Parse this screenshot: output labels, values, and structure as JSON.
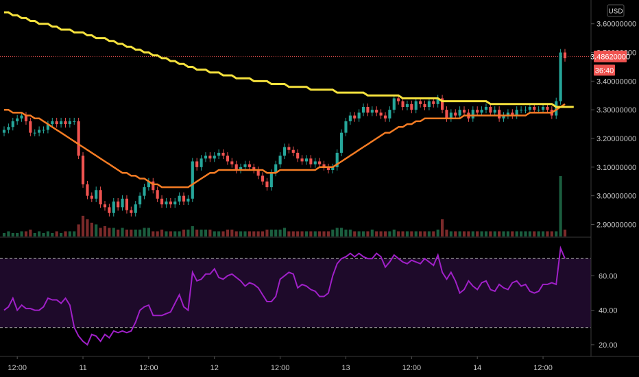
{
  "chart_data": {
    "type": "candlestick",
    "currency_label": "USD",
    "price_axis": {
      "range": [
        2.87,
        3.64
      ],
      "ticks": [
        {
          "value": 3.6,
          "label": "3.60000000"
        },
        {
          "value": 3.5,
          "label": "3.50000000"
        },
        {
          "value": 3.4,
          "label": "3.40000000"
        },
        {
          "value": 3.3,
          "label": "3.30000000"
        },
        {
          "value": 3.2,
          "label": "3.20000000"
        },
        {
          "value": 3.1,
          "label": "3.10000000"
        },
        {
          "value": 3.0,
          "label": "3.00000000"
        },
        {
          "value": 2.9,
          "label": "2.90000000"
        }
      ]
    },
    "current_price": {
      "value": 3.4862,
      "label": "3.48620000",
      "countdown": "36:40",
      "color": "#ef5350"
    },
    "rsi_axis": {
      "range": [
        14,
        80
      ],
      "ticks": [
        {
          "value": 60,
          "label": "60.00"
        },
        {
          "value": 40,
          "label": "40.00"
        },
        {
          "value": 20,
          "label": "20.00"
        }
      ],
      "upper_band": 70,
      "lower_band": 30
    },
    "time_axis": [
      {
        "index": 3,
        "label": "12:00"
      },
      {
        "index": 18,
        "label": "11"
      },
      {
        "index": 33,
        "label": "12:00"
      },
      {
        "index": 48,
        "label": "12"
      },
      {
        "index": 63,
        "label": "12:00"
      },
      {
        "index": 78,
        "label": "13"
      },
      {
        "index": 93,
        "label": "12:00"
      },
      {
        "index": 108,
        "label": "14"
      },
      {
        "index": 123,
        "label": "12:00"
      }
    ],
    "colors": {
      "up": "#26a69a",
      "down": "#ef5350",
      "vol_up": "#1b5e3f",
      "vol_down": "#7b2a2a",
      "ma_long": "#f5e13d",
      "ma_short": "#f57c24",
      "rsi": "#a020c8",
      "rsi_band_fill": "#1e0a2a"
    },
    "candle_closes": [
      3.23,
      3.24,
      3.26,
      3.27,
      3.28,
      3.26,
      3.22,
      3.22,
      3.23,
      3.23,
      3.25,
      3.26,
      3.25,
      3.26,
      3.25,
      3.26,
      3.26,
      3.14,
      3.04,
      3.0,
      2.99,
      3.02,
      2.97,
      2.96,
      2.94,
      2.98,
      2.96,
      2.99,
      2.95,
      2.94,
      2.97,
      3.0,
      3.03,
      3.05,
      3.02,
      2.99,
      2.97,
      2.98,
      2.97,
      2.98,
      3.0,
      2.98,
      2.99,
      3.12,
      3.1,
      3.13,
      3.14,
      3.13,
      3.14,
      3.15,
      3.14,
      3.12,
      3.11,
      3.09,
      3.1,
      3.11,
      3.1,
      3.09,
      3.07,
      3.05,
      3.03,
      3.08,
      3.11,
      3.14,
      3.17,
      3.16,
      3.15,
      3.13,
      3.12,
      3.13,
      3.11,
      3.12,
      3.11,
      3.1,
      3.09,
      3.1,
      3.15,
      3.22,
      3.26,
      3.28,
      3.27,
      3.29,
      3.31,
      3.29,
      3.3,
      3.29,
      3.28,
      3.27,
      3.3,
      3.34,
      3.33,
      3.31,
      3.32,
      3.3,
      3.33,
      3.32,
      3.31,
      3.33,
      3.32,
      3.34,
      3.3,
      3.27,
      3.29,
      3.28,
      3.3,
      3.29,
      3.27,
      3.3,
      3.29,
      3.3,
      3.31,
      3.29,
      3.3,
      3.27,
      3.28,
      3.29,
      3.28,
      3.3,
      3.3,
      3.3,
      3.31,
      3.3,
      3.3,
      3.31,
      3.3,
      3.28,
      3.33,
      3.5,
      3.48
    ],
    "ma_long": [
      3.64,
      3.64,
      3.63,
      3.63,
      3.62,
      3.62,
      3.61,
      3.61,
      3.6,
      3.6,
      3.6,
      3.59,
      3.59,
      3.58,
      3.58,
      3.58,
      3.57,
      3.57,
      3.57,
      3.56,
      3.56,
      3.55,
      3.55,
      3.55,
      3.54,
      3.54,
      3.53,
      3.53,
      3.52,
      3.52,
      3.51,
      3.51,
      3.5,
      3.5,
      3.49,
      3.49,
      3.48,
      3.48,
      3.47,
      3.47,
      3.46,
      3.46,
      3.45,
      3.45,
      3.44,
      3.44,
      3.44,
      3.43,
      3.43,
      3.43,
      3.42,
      3.42,
      3.42,
      3.41,
      3.41,
      3.41,
      3.41,
      3.4,
      3.4,
      3.4,
      3.4,
      3.39,
      3.39,
      3.39,
      3.39,
      3.38,
      3.38,
      3.38,
      3.38,
      3.38,
      3.37,
      3.37,
      3.37,
      3.37,
      3.37,
      3.37,
      3.36,
      3.36,
      3.36,
      3.36,
      3.36,
      3.36,
      3.36,
      3.35,
      3.35,
      3.35,
      3.35,
      3.35,
      3.35,
      3.35,
      3.35,
      3.34,
      3.34,
      3.34,
      3.34,
      3.34,
      3.34,
      3.34,
      3.34,
      3.34,
      3.33,
      3.33,
      3.33,
      3.33,
      3.33,
      3.33,
      3.33,
      3.33,
      3.33,
      3.33,
      3.33,
      3.32,
      3.32,
      3.32,
      3.32,
      3.32,
      3.32,
      3.32,
      3.32,
      3.32,
      3.32,
      3.32,
      3.32,
      3.32,
      3.32,
      3.32,
      3.31,
      3.31,
      3.31,
      3.31,
      3.31
    ],
    "ma_short": [
      3.3,
      3.3,
      3.29,
      3.29,
      3.29,
      3.28,
      3.28,
      3.27,
      3.27,
      3.26,
      3.25,
      3.24,
      3.23,
      3.22,
      3.21,
      3.2,
      3.19,
      3.18,
      3.17,
      3.16,
      3.15,
      3.14,
      3.13,
      3.12,
      3.11,
      3.1,
      3.09,
      3.08,
      3.08,
      3.07,
      3.07,
      3.06,
      3.06,
      3.05,
      3.04,
      3.04,
      3.03,
      3.03,
      3.03,
      3.03,
      3.03,
      3.03,
      3.03,
      3.04,
      3.05,
      3.06,
      3.07,
      3.08,
      3.08,
      3.09,
      3.09,
      3.09,
      3.09,
      3.09,
      3.09,
      3.09,
      3.09,
      3.09,
      3.09,
      3.09,
      3.08,
      3.08,
      3.08,
      3.09,
      3.09,
      3.09,
      3.09,
      3.09,
      3.09,
      3.09,
      3.09,
      3.09,
      3.1,
      3.1,
      3.1,
      3.1,
      3.11,
      3.12,
      3.13,
      3.14,
      3.15,
      3.16,
      3.17,
      3.18,
      3.19,
      3.2,
      3.21,
      3.22,
      3.22,
      3.23,
      3.24,
      3.24,
      3.25,
      3.25,
      3.26,
      3.26,
      3.27,
      3.27,
      3.27,
      3.27,
      3.27,
      3.27,
      3.27,
      3.27,
      3.27,
      3.28,
      3.28,
      3.28,
      3.28,
      3.28,
      3.28,
      3.28,
      3.28,
      3.28,
      3.28,
      3.28,
      3.28,
      3.28,
      3.28,
      3.28,
      3.29,
      3.29,
      3.29,
      3.29,
      3.29,
      3.29,
      3.3,
      3.31,
      3.32
    ],
    "volume": [
      2,
      3,
      2,
      2,
      3,
      3,
      4,
      2,
      3,
      2,
      3,
      2,
      3,
      2,
      3,
      3,
      3,
      7,
      12,
      10,
      8,
      7,
      5,
      6,
      5,
      5,
      4,
      5,
      4,
      4,
      4,
      4,
      5,
      5,
      3,
      3,
      4,
      3,
      3,
      3,
      3,
      4,
      4,
      6,
      4,
      4,
      4,
      4,
      3,
      3,
      3,
      4,
      4,
      3,
      3,
      3,
      3,
      3,
      3,
      3,
      4,
      4,
      4,
      4,
      5,
      3,
      3,
      3,
      3,
      3,
      3,
      3,
      3,
      3,
      3,
      4,
      5,
      5,
      4,
      4,
      3,
      3,
      3,
      3,
      4,
      3,
      3,
      3,
      3,
      4,
      3,
      3,
      3,
      3,
      3,
      3,
      3,
      3,
      3,
      4,
      10,
      4,
      3,
      3,
      3,
      3,
      3,
      3,
      3,
      3,
      3,
      3,
      3,
      3,
      3,
      3,
      3,
      3,
      3,
      3,
      3,
      3,
      3,
      3,
      3,
      3,
      3,
      35,
      4
    ],
    "rsi": [
      40,
      42,
      47,
      40,
      43,
      41,
      41,
      40,
      40,
      42,
      47,
      46,
      46,
      44,
      47,
      43,
      30,
      25,
      22,
      20,
      26,
      25,
      22,
      26,
      24,
      28,
      27,
      28,
      27,
      28,
      33,
      40,
      42,
      43,
      37,
      37,
      37,
      38,
      39,
      44,
      49,
      42,
      40,
      62,
      57,
      58,
      61,
      61,
      64,
      59,
      58,
      60,
      61,
      59,
      57,
      54,
      56,
      55,
      53,
      49,
      45,
      45,
      48,
      58,
      60,
      62,
      61,
      53,
      55,
      54,
      52,
      51,
      48,
      48,
      50,
      60,
      67,
      70,
      71,
      73,
      71,
      73,
      71,
      70,
      70,
      73,
      71,
      65,
      68,
      72,
      70,
      68,
      67,
      69,
      68,
      67,
      70,
      68,
      66,
      72,
      62,
      58,
      62,
      57,
      50,
      52,
      57,
      54,
      52,
      56,
      57,
      52,
      51,
      55,
      53,
      52,
      56,
      57,
      54,
      55,
      51,
      50,
      51,
      55,
      55,
      56,
      55,
      76,
      70
    ]
  }
}
